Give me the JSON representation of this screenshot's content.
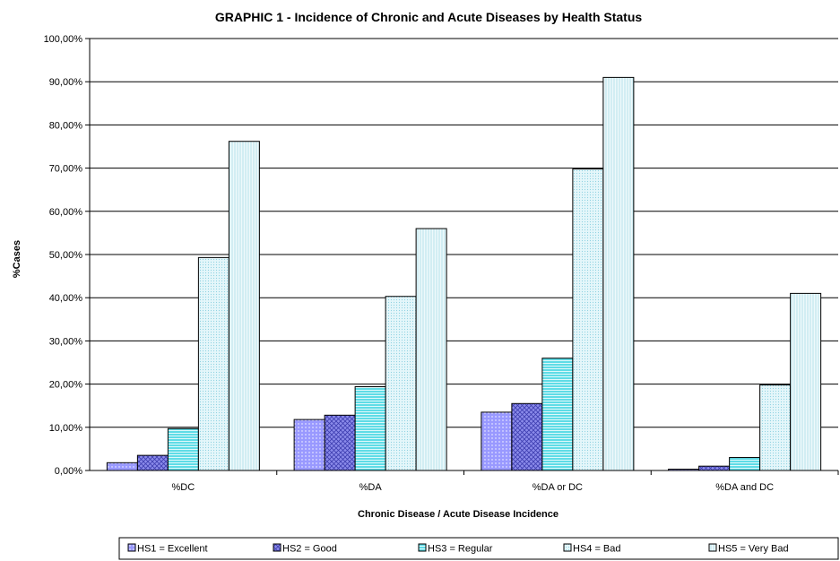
{
  "chart_data": {
    "type": "bar",
    "title": "GRAPHIC 1 - Incidence of Chronic and Acute Diseases by Health Status",
    "xlabel": "Chronic Disease / Acute Disease Incidence",
    "ylabel": "%Cases",
    "categories": [
      "%DC",
      "%DA",
      "%DA or DC",
      "%DA and DC"
    ],
    "ylim": [
      0,
      100
    ],
    "yticks": [
      "0,00%",
      "10,00%",
      "20,00%",
      "30,00%",
      "40,00%",
      "50,00%",
      "60,00%",
      "70,00%",
      "80,00%",
      "90,00%",
      "100,00%"
    ],
    "grid": true,
    "legend_position": "bottom",
    "series": [
      {
        "name": "HS1 = Excellent",
        "values": [
          1.8,
          11.8,
          13.5,
          0.3
        ],
        "color": "#9999ff",
        "pattern": "dots"
      },
      {
        "name": "HS2 = Good",
        "values": [
          3.5,
          12.8,
          15.5,
          1.0
        ],
        "color": "#7777dd",
        "pattern": "crosshatch"
      },
      {
        "name": "HS3 = Regular",
        "values": [
          9.7,
          19.4,
          26.0,
          3.0
        ],
        "color": "#66e0e8",
        "pattern": "hlines"
      },
      {
        "name": "HS4 = Bad",
        "values": [
          49.3,
          40.3,
          69.8,
          19.8
        ],
        "color": "#c8ecf5",
        "pattern": "fine"
      },
      {
        "name": "HS5 = Very Bad",
        "values": [
          76.2,
          56.0,
          91.0,
          41.0
        ],
        "color": "#dff4f8",
        "pattern": "vlines"
      }
    ]
  }
}
